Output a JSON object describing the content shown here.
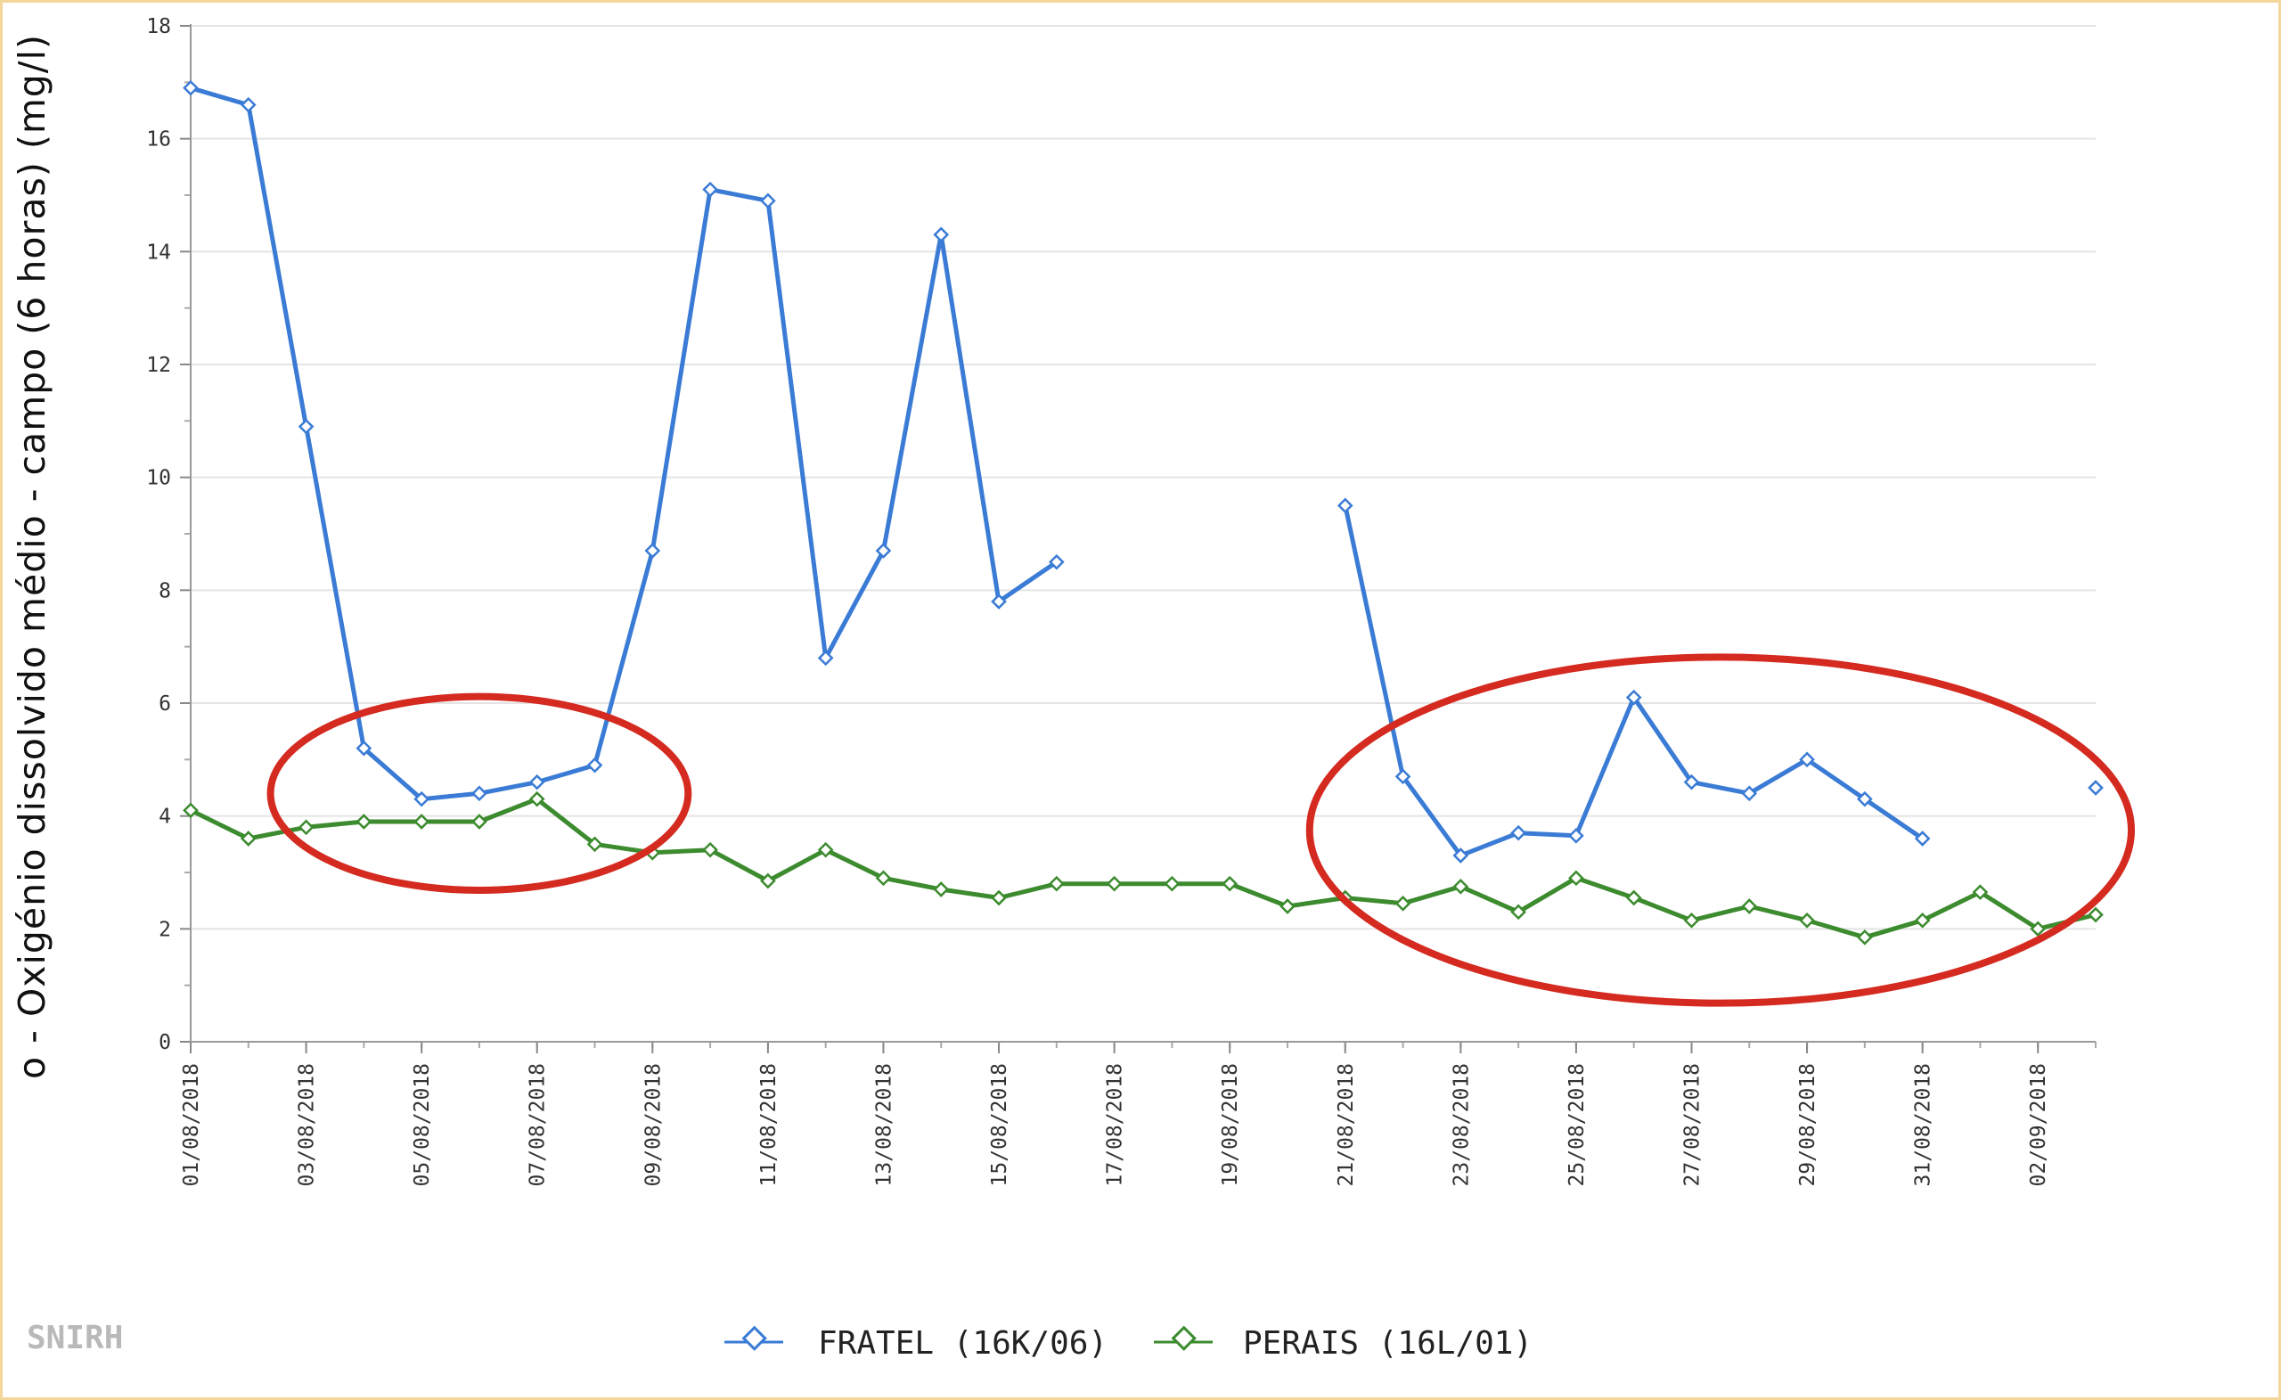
{
  "brand": "SNIRH",
  "colors": {
    "fratel": "#3a7bd5",
    "perais": "#3c8b2e",
    "highlight": "#d42a20",
    "grid": "#e4e4e4",
    "frame": "#f3d79a"
  },
  "chart_data": {
    "type": "line",
    "ylabel": "o - Oxigénio dissolvido médio - campo (6 horas) (mg/l)",
    "xlabel": "",
    "ylim": [
      0,
      18
    ],
    "yticks": [
      0,
      2,
      4,
      6,
      8,
      10,
      12,
      14,
      16,
      18
    ],
    "x": [
      "2018-08-01",
      "2018-08-02",
      "2018-08-03",
      "2018-08-04",
      "2018-08-05",
      "2018-08-06",
      "2018-08-07",
      "2018-08-08",
      "2018-08-09",
      "2018-08-10",
      "2018-08-11",
      "2018-08-12",
      "2018-08-13",
      "2018-08-14",
      "2018-08-15",
      "2018-08-16",
      "2018-08-17",
      "2018-08-18",
      "2018-08-19",
      "2018-08-20",
      "2018-08-21",
      "2018-08-22",
      "2018-08-23",
      "2018-08-24",
      "2018-08-25",
      "2018-08-26",
      "2018-08-27",
      "2018-08-28",
      "2018-08-29",
      "2018-08-30",
      "2018-08-31",
      "2018-09-01",
      "2018-09-02",
      "2018-09-03"
    ],
    "xtick_labels": [
      "01/08/2018",
      "03/08/2018",
      "05/08/2018",
      "07/08/2018",
      "09/08/2018",
      "11/08/2018",
      "13/08/2018",
      "15/08/2018",
      "17/08/2018",
      "19/08/2018",
      "21/08/2018",
      "23/08/2018",
      "25/08/2018",
      "27/08/2018",
      "29/08/2018",
      "31/08/2018",
      "02/09/2018"
    ],
    "xtick_dates": [
      "2018-08-01",
      "2018-08-03",
      "2018-08-05",
      "2018-08-07",
      "2018-08-09",
      "2018-08-11",
      "2018-08-13",
      "2018-08-15",
      "2018-08-17",
      "2018-08-19",
      "2018-08-21",
      "2018-08-23",
      "2018-08-25",
      "2018-08-27",
      "2018-08-29",
      "2018-08-31",
      "2018-09-02"
    ],
    "series": [
      {
        "name": "FRATEL (16K/06)",
        "color": "#3a7bd5",
        "values": [
          16.9,
          16.6,
          10.9,
          5.2,
          4.3,
          4.4,
          4.6,
          4.9,
          8.7,
          15.1,
          14.9,
          6.8,
          8.7,
          14.3,
          7.8,
          8.5,
          null,
          null,
          null,
          null,
          9.5,
          4.7,
          3.3,
          3.7,
          3.65,
          6.1,
          4.6,
          4.4,
          5.0,
          4.3,
          3.6,
          null,
          null,
          4.5
        ]
      },
      {
        "name": "PERAIS (16L/01)",
        "color": "#3c8b2e",
        "values": [
          4.1,
          3.6,
          3.8,
          3.9,
          3.9,
          3.9,
          4.3,
          3.5,
          3.35,
          3.4,
          2.85,
          3.4,
          2.9,
          2.7,
          2.55,
          2.8,
          2.8,
          2.8,
          2.8,
          2.4,
          2.55,
          2.45,
          2.75,
          2.3,
          2.9,
          2.55,
          2.15,
          2.4,
          2.15,
          1.85,
          2.15,
          2.65,
          2.0,
          2.25
        ]
      }
    ],
    "highlight_regions": [
      {
        "x_from": "2018-08-03",
        "x_to": "2018-08-09",
        "y_from": 3.0,
        "y_to": 5.8
      },
      {
        "x_from": "2018-08-21",
        "x_to": "2018-09-03",
        "y_from": 1.0,
        "y_to": 6.5
      }
    ],
    "grid": true,
    "legend_position": "bottom-center"
  }
}
